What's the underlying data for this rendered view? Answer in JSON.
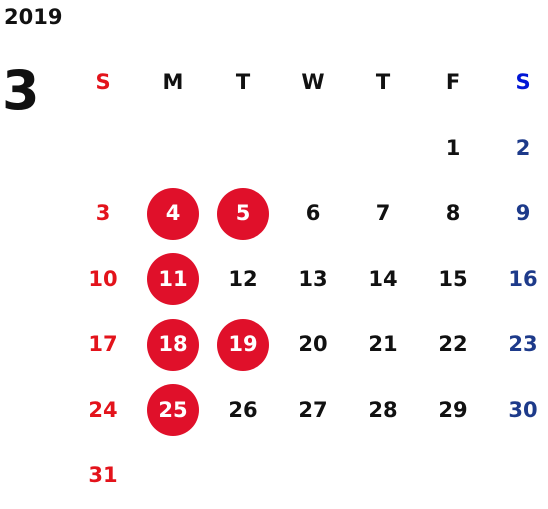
{
  "calendar": {
    "year": "2019",
    "month": "3",
    "weekday_headers": [
      "S",
      "M",
      "T",
      "W",
      "T",
      "F",
      "S"
    ],
    "colors": {
      "sunday": "#e3131b",
      "saturday": "#1d3a8a",
      "highlight_bg": "#e0102a",
      "text": "#111111"
    },
    "weeks": [
      [
        {
          "day": "",
          "highlighted": false
        },
        {
          "day": "",
          "highlighted": false
        },
        {
          "day": "",
          "highlighted": false
        },
        {
          "day": "",
          "highlighted": false
        },
        {
          "day": "",
          "highlighted": false
        },
        {
          "day": "1",
          "highlighted": false
        },
        {
          "day": "2",
          "highlighted": false
        }
      ],
      [
        {
          "day": "3",
          "highlighted": false
        },
        {
          "day": "4",
          "highlighted": true
        },
        {
          "day": "5",
          "highlighted": true
        },
        {
          "day": "6",
          "highlighted": false
        },
        {
          "day": "7",
          "highlighted": false
        },
        {
          "day": "8",
          "highlighted": false
        },
        {
          "day": "9",
          "highlighted": false
        }
      ],
      [
        {
          "day": "10",
          "highlighted": false
        },
        {
          "day": "11",
          "highlighted": true
        },
        {
          "day": "12",
          "highlighted": false
        },
        {
          "day": "13",
          "highlighted": false
        },
        {
          "day": "14",
          "highlighted": false
        },
        {
          "day": "15",
          "highlighted": false
        },
        {
          "day": "16",
          "highlighted": false
        }
      ],
      [
        {
          "day": "17",
          "highlighted": false
        },
        {
          "day": "18",
          "highlighted": true
        },
        {
          "day": "19",
          "highlighted": true
        },
        {
          "day": "20",
          "highlighted": false
        },
        {
          "day": "21",
          "highlighted": false
        },
        {
          "day": "22",
          "highlighted": false
        },
        {
          "day": "23",
          "highlighted": false
        }
      ],
      [
        {
          "day": "24",
          "highlighted": false
        },
        {
          "day": "25",
          "highlighted": true
        },
        {
          "day": "26",
          "highlighted": false
        },
        {
          "day": "27",
          "highlighted": false
        },
        {
          "day": "28",
          "highlighted": false
        },
        {
          "day": "29",
          "highlighted": false
        },
        {
          "day": "30",
          "highlighted": false
        }
      ],
      [
        {
          "day": "31",
          "highlighted": false
        },
        {
          "day": "",
          "highlighted": false
        },
        {
          "day": "",
          "highlighted": false
        },
        {
          "day": "",
          "highlighted": false
        },
        {
          "day": "",
          "highlighted": false
        },
        {
          "day": "",
          "highlighted": false
        },
        {
          "day": "",
          "highlighted": false
        }
      ]
    ]
  }
}
